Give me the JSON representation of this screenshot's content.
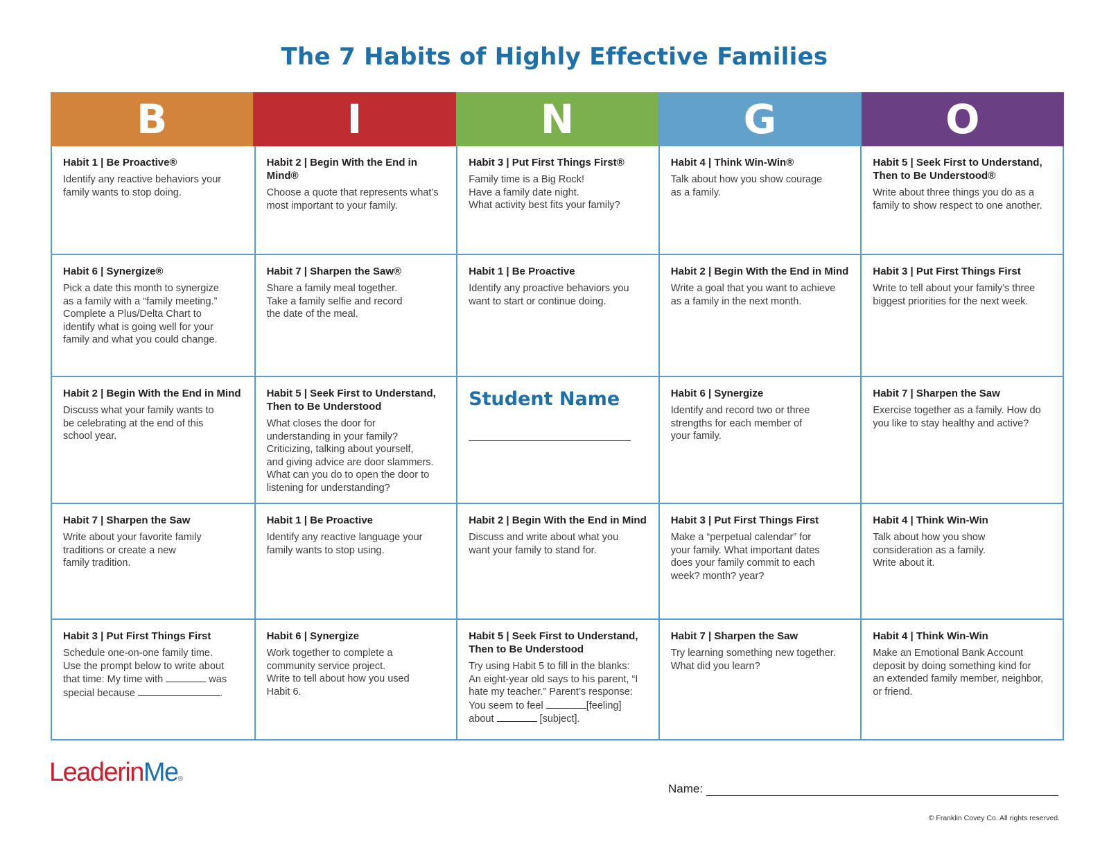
{
  "title": "The 7 Habits of Highly Effective Families",
  "header": [
    {
      "letter": "B",
      "color": "#d2843a"
    },
    {
      "letter": "I",
      "color": "#bf2d30"
    },
    {
      "letter": "N",
      "color": "#7bb04c"
    },
    {
      "letter": "G",
      "color": "#62a1c9"
    },
    {
      "letter": "O",
      "color": "#6b3f83"
    }
  ],
  "rows": [
    [
      {
        "habit": "Habit 1 | Be Proactive®",
        "text": "Identify any reactive behaviors your\nfamily wants to stop doing."
      },
      {
        "habit": "Habit 2 | Begin With the End in Mind®",
        "text": "Choose a quote that represents what’s\nmost important to your family."
      },
      {
        "habit": "Habit 3 | Put First Things First®",
        "text": "Family time is a Big Rock!\nHave a family date night.\nWhat activity best fits your family?"
      },
      {
        "habit": "Habit 4 | Think Win-Win®",
        "text": "Talk about how you show courage\nas a family."
      },
      {
        "habit": "Habit 5 | Seek First to Understand,\nThen to Be Understood®",
        "text": "Write about three things you do as a\nfamily to show respect to one another."
      }
    ],
    [
      {
        "habit": "Habit 6 | Synergize®",
        "text": "Pick a date this month to synergize\nas a family with a “family meeting.”\nComplete a Plus/Delta Chart to\nidentify what is going well for your\nfamily and what you could change."
      },
      {
        "habit": "Habit 7 | Sharpen the Saw®",
        "text": "Share a family meal together.\nTake a family selfie and record\nthe date of the meal."
      },
      {
        "habit": "Habit 1 | Be Proactive",
        "text": "Identify any proactive behaviors you\nwant to start or continue doing."
      },
      {
        "habit": "Habit 2 | Begin With the End in Mind",
        "text": "Write a goal that you want to achieve\nas a family in the next month."
      },
      {
        "habit": "Habit 3 | Put First Things First",
        "text": "Write to tell about your family’s three\nbiggest priorities for the next week."
      }
    ],
    [
      {
        "habit": "Habit 2 | Begin With the End in Mind",
        "text": "Discuss what your family wants to\nbe celebrating at the end of this\nschool year."
      },
      {
        "habit": "Habit 5 | Seek First to Understand,\nThen to Be Understood",
        "text": "What closes the door for\nunderstanding in your family?\nCriticizing, talking about yourself,\nand giving advice are door slammers.\nWhat can you do to open the door to\nlistening for understanding?"
      },
      {
        "student_name": "Student Name"
      },
      {
        "habit": "Habit 6 | Synergize",
        "text": "Identify and record two or three\nstrengths for each member of\nyour family."
      },
      {
        "habit": "Habit 7 | Sharpen the Saw",
        "text": "Exercise together as a family. How do\nyou like to stay healthy and active?"
      }
    ],
    [
      {
        "habit": "Habit 7 | Sharpen the Saw",
        "text": "Write about your favorite family\ntraditions or create a new\nfamily tradition."
      },
      {
        "habit": "Habit 1 | Be Proactive",
        "text": "Identify any reactive language your\nfamily wants to stop using."
      },
      {
        "habit": "Habit 2 | Begin With the End in Mind",
        "text": "Discuss and write about what you\nwant your family to stand for."
      },
      {
        "habit": "Habit 3 | Put First Things First",
        "text": "Make a “perpetual calendar” for\nyour family. What important dates\ndoes your family commit to each\nweek? month? year?"
      },
      {
        "habit": "Habit 4 | Think Win-Win",
        "text": "Talk about how you show\nconsideration as a family.\nWrite about it."
      }
    ],
    [
      {
        "habit": "Habit 3 | Put First Things First",
        "text_parts": [
          "Schedule one-on-one family time.\nUse the prompt below to write about\nthat time:  My time with ",
          " was\nspecial because ",
          "."
        ]
      },
      {
        "habit": "Habit 6 | Synergize",
        "text": "Work together to complete a\ncommunity service project.\nWrite to tell about how you used\nHabit 6."
      },
      {
        "habit": "Habit 5 | Seek First to Understand,\nThen to Be Understood",
        "text_parts": [
          "Try using Habit 5 to fill in the blanks:\nAn eight-year old says to his parent, “I\nhate my teacher.” Parent’s response:\nYou seem to feel ",
          "[feeling]\nabout ",
          " [subject]."
        ]
      },
      {
        "habit": "Habit 7 | Sharpen the Saw",
        "text": "Try learning something new together.\nWhat did you learn?"
      },
      {
        "habit": "Habit 4 | Think Win-Win",
        "text": "Make an Emotional Bank Account\ndeposit by doing something kind for\nan extended family member, neighbor,\nor friend."
      }
    ]
  ],
  "footer": {
    "logo_part1": "Leader",
    "logo_part2": "in",
    "logo_part3": "Me",
    "logo_reg": "®",
    "name_label": "Name:",
    "copyright": "© Franklin Covey Co. All rights reserved."
  }
}
